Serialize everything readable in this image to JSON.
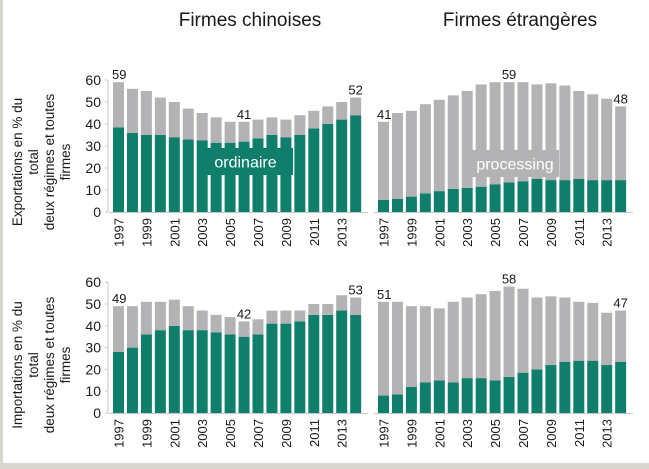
{
  "colors": {
    "ordinaire": "#0f7f6c",
    "processing": "#b3b3b6",
    "axis": "#c8c8c8",
    "frame": "#d9d5d1"
  },
  "titles": {
    "left": "Firmes chinoises",
    "right": "Firmes étrangères"
  },
  "row_labels": {
    "top_line1": "Exportations en % du total",
    "top_line2": "deux régimes et toutes firmes",
    "bottom_line1": "Importations en % du total",
    "bottom_line2": "deux régimes et toutes firmes"
  },
  "region_labels": {
    "ordinaire": "ordinaire",
    "processing": "processing"
  },
  "chart_data": [
    {
      "type": "bar",
      "stacked": true,
      "title": "Firmes chinoises",
      "ylabel": "Exportations en % du total deux régimes et toutes firmes",
      "categories": [
        "1997",
        "1998",
        "1999",
        "2000",
        "2001",
        "2002",
        "2003",
        "2004",
        "2005",
        "2006",
        "2007",
        "2008",
        "2009",
        "2010",
        "2011",
        "2012",
        "2013",
        "2014"
      ],
      "xtick_labels": [
        "1997",
        "1999",
        "2001",
        "2003",
        "2005",
        "2007",
        "2009",
        "2011",
        "2013"
      ],
      "yticks": [
        "0",
        "10",
        "20",
        "30",
        "40",
        "50",
        "60"
      ],
      "ylim": [
        0,
        60
      ],
      "series": [
        {
          "name": "ordinaire",
          "values": [
            38.5,
            36,
            35,
            35,
            34,
            33,
            32.5,
            31.5,
            31.5,
            32,
            33.5,
            35,
            34,
            35,
            38,
            40,
            42,
            44
          ]
        },
        {
          "name": "processing",
          "values": [
            20.5,
            20,
            20,
            17,
            16,
            14,
            12.5,
            11.5,
            9.5,
            9,
            8.5,
            8,
            8,
            9,
            8,
            8,
            8,
            8
          ]
        }
      ],
      "totals": [
        59,
        56,
        55,
        52,
        50,
        47,
        45,
        43,
        41,
        41,
        42,
        43,
        42,
        44,
        46,
        48,
        50,
        52
      ],
      "annotations": [
        {
          "index": 0,
          "text": "59"
        },
        {
          "index": 9,
          "text": "41"
        },
        {
          "index": 17,
          "text": "52"
        }
      ],
      "region_label": "ordinaire"
    },
    {
      "type": "bar",
      "stacked": true,
      "title": "Firmes étrangères",
      "categories": [
        "1997",
        "1998",
        "1999",
        "2000",
        "2001",
        "2002",
        "2003",
        "2004",
        "2005",
        "2006",
        "2007",
        "2008",
        "2009",
        "2010",
        "2011",
        "2012",
        "2013",
        "2014"
      ],
      "xtick_labels": [
        "1997",
        "1999",
        "2001",
        "2003",
        "2005",
        "2007",
        "2009",
        "2011",
        "2013"
      ],
      "ylim": [
        0,
        60
      ],
      "series": [
        {
          "name": "ordinaire",
          "values": [
            5.5,
            6,
            7,
            8.5,
            9.5,
            10.5,
            11,
            11.5,
            12.5,
            13.5,
            14,
            15,
            14.5,
            14.5,
            15,
            14.5,
            14.5,
            14.5
          ]
        },
        {
          "name": "processing",
          "values": [
            35.5,
            39,
            39,
            40.5,
            41.5,
            42.5,
            44,
            46.5,
            46.5,
            45.5,
            45,
            43,
            44,
            43,
            40,
            39,
            37,
            33.5
          ]
        }
      ],
      "totals": [
        41,
        45,
        46,
        49,
        51,
        53,
        55,
        58,
        59,
        59,
        59,
        58,
        58.5,
        57.5,
        55,
        53.5,
        51.5,
        48
      ],
      "annotations": [
        {
          "index": 0,
          "text": "41"
        },
        {
          "index": 9,
          "text": "59"
        },
        {
          "index": 17,
          "text": "48"
        }
      ],
      "region_label": "processing"
    },
    {
      "type": "bar",
      "stacked": true,
      "title": "Firmes chinoises",
      "ylabel": "Importations en % du total deux régimes et toutes firmes",
      "categories": [
        "1997",
        "1998",
        "1999",
        "2000",
        "2001",
        "2002",
        "2003",
        "2004",
        "2005",
        "2006",
        "2007",
        "2008",
        "2009",
        "2010",
        "2011",
        "2012",
        "2013",
        "2014"
      ],
      "xtick_labels": [
        "1997",
        "1999",
        "2001",
        "2003",
        "2005",
        "2007",
        "2009",
        "2011",
        "2013"
      ],
      "yticks": [
        "0",
        "10",
        "20",
        "30",
        "40",
        "50",
        "60"
      ],
      "ylim": [
        0,
        60
      ],
      "series": [
        {
          "name": "ordinaire",
          "values": [
            28,
            30,
            36,
            38,
            40,
            38,
            38,
            37,
            36,
            35,
            36,
            41,
            41,
            42,
            45,
            45,
            47,
            45
          ]
        },
        {
          "name": "processing",
          "values": [
            21,
            19,
            15,
            13,
            12,
            11,
            9,
            8,
            8,
            7,
            7,
            6,
            6,
            5,
            5,
            5,
            7,
            8
          ]
        }
      ],
      "totals": [
        49,
        49,
        51,
        51,
        52,
        49,
        47,
        45,
        44,
        42,
        43,
        47,
        47,
        47,
        50,
        50,
        54,
        53
      ],
      "annotations": [
        {
          "index": 0,
          "text": "49"
        },
        {
          "index": 9,
          "text": "42"
        },
        {
          "index": 17,
          "text": "53"
        }
      ]
    },
    {
      "type": "bar",
      "stacked": true,
      "title": "Firmes étrangères",
      "categories": [
        "1997",
        "1998",
        "1999",
        "2000",
        "2001",
        "2002",
        "2003",
        "2004",
        "2005",
        "2006",
        "2007",
        "2008",
        "2009",
        "2010",
        "2011",
        "2012",
        "2013",
        "2014"
      ],
      "xtick_labels": [
        "1997",
        "1999",
        "2001",
        "2003",
        "2005",
        "2007",
        "2009",
        "2011",
        "2013"
      ],
      "ylim": [
        0,
        60
      ],
      "series": [
        {
          "name": "ordinaire",
          "values": [
            8,
            8.5,
            12,
            14,
            15,
            14,
            16,
            16,
            15,
            16.5,
            18.5,
            20,
            22,
            23.5,
            24,
            24,
            22,
            23.5
          ]
        },
        {
          "name": "processing",
          "values": [
            43,
            42.5,
            37,
            35,
            33,
            37,
            37,
            38.5,
            41,
            41.5,
            38.5,
            33,
            31.5,
            29.5,
            27,
            26.5,
            24,
            23.5
          ]
        }
      ],
      "totals": [
        51,
        51,
        49,
        49,
        48,
        51,
        53,
        54.5,
        56,
        58,
        57,
        53,
        53.5,
        53,
        51,
        50.5,
        46,
        47
      ],
      "annotations": [
        {
          "index": 0,
          "text": "51"
        },
        {
          "index": 9,
          "text": "58"
        },
        {
          "index": 17,
          "text": "47"
        }
      ]
    }
  ]
}
